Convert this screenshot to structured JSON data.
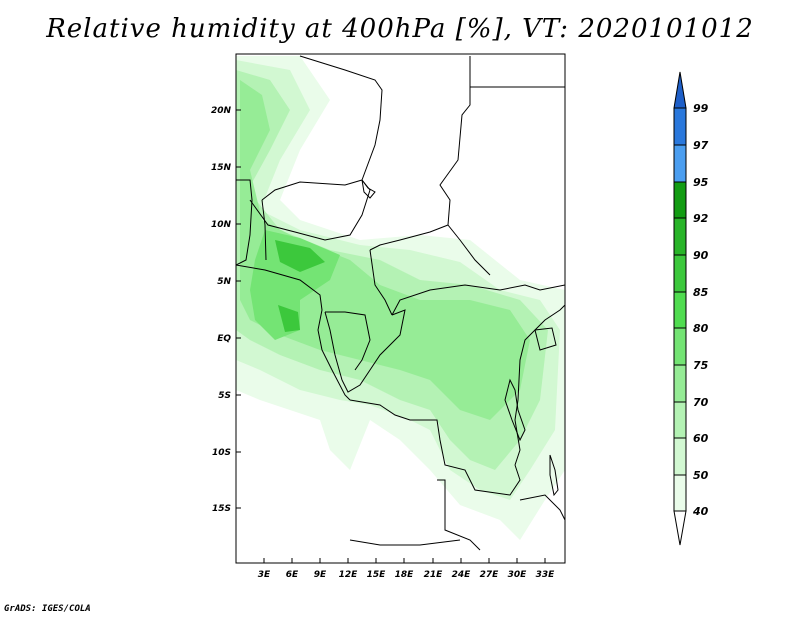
{
  "title": "Relative humidity at 400hPa [%], VT: 2020101012",
  "credit": "GrADS: IGES/COLA",
  "map": {
    "lat_labels": [
      "20N",
      "15N",
      "10N",
      "5N",
      "EQ",
      "5S",
      "10S",
      "15S"
    ],
    "lon_labels": [
      "3E",
      "6E",
      "9E",
      "12E",
      "15E",
      "18E",
      "21E",
      "24E",
      "27E",
      "30E",
      "33E"
    ]
  },
  "colorbar": {
    "levels": [
      "99",
      "97",
      "95",
      "92",
      "90",
      "85",
      "80",
      "75",
      "70",
      "60",
      "50",
      "40"
    ],
    "colors": {
      "above_99": "#1e5fc8",
      "97_99": "#2a78dc",
      "95_97": "#4b9ef0",
      "92_95": "#139c13",
      "90_92": "#28b428",
      "85_90": "#3cc83c",
      "80_85": "#50dc50",
      "75_80": "#74e474",
      "70_75": "#96ec96",
      "60_70": "#b4f2b4",
      "50_60": "#d2f8d2",
      "40_50": "#eafcea",
      "below_40": "#ffffff"
    }
  },
  "colors": {
    "frame": "#000000",
    "background": "#ffffff"
  }
}
